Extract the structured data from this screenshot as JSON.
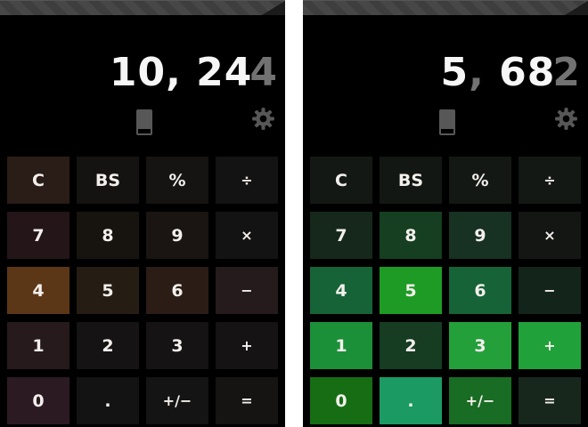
{
  "display_tones": {
    "bright": "#f6f6f6",
    "dim": "#727272"
  },
  "status_bar": {
    "base": "#474747",
    "stripe": "#3e3e3e",
    "corner": "#1b1b1b"
  },
  "icon_color": "#575757",
  "panels": [
    {
      "theme": "brown",
      "display": {
        "value_shown": "10,244",
        "segments": [
          {
            "text": "10, 24",
            "tone": "bright",
            "overlap": false
          },
          {
            "text": "4",
            "tone": "dim",
            "overlap": true
          }
        ]
      },
      "toolbar": {
        "icons": [
          "phone-display",
          "settings-gear"
        ]
      },
      "keys": [
        {
          "name": "clear",
          "label": "C",
          "bg": "#2a1c16",
          "op": false
        },
        {
          "name": "backspace",
          "label": "BS",
          "bg": "#151312",
          "op": false
        },
        {
          "name": "percent",
          "label": "%",
          "bg": "#151413",
          "op": false
        },
        {
          "name": "divide",
          "label": "÷",
          "bg": "#141313",
          "op": true
        },
        {
          "name": "7",
          "label": "7",
          "bg": "#241519",
          "op": false
        },
        {
          "name": "8",
          "label": "8",
          "bg": "#171410",
          "op": false
        },
        {
          "name": "9",
          "label": "9",
          "bg": "#1a1512",
          "op": false
        },
        {
          "name": "multiply",
          "label": "×",
          "bg": "#141313",
          "op": true
        },
        {
          "name": "4",
          "label": "4",
          "bg": "#5c3717",
          "op": false
        },
        {
          "name": "5",
          "label": "5",
          "bg": "#251c13",
          "op": false
        },
        {
          "name": "6",
          "label": "6",
          "bg": "#2b1d15",
          "op": false
        },
        {
          "name": "subtract",
          "label": "−",
          "bg": "#251a1c",
          "op": true
        },
        {
          "name": "1",
          "label": "1",
          "bg": "#261a1d",
          "op": false
        },
        {
          "name": "2",
          "label": "2",
          "bg": "#151313",
          "op": false
        },
        {
          "name": "3",
          "label": "3",
          "bg": "#161314",
          "op": false
        },
        {
          "name": "add",
          "label": "+",
          "bg": "#161314",
          "op": true
        },
        {
          "name": "0",
          "label": "0",
          "bg": "#2c1a23",
          "op": false
        },
        {
          "name": "decimal",
          "label": ".",
          "bg": "#141313",
          "op": false
        },
        {
          "name": "sign",
          "label": "+/−",
          "bg": "#151414",
          "op": true
        },
        {
          "name": "equals",
          "label": "=",
          "bg": "#161413",
          "op": true
        }
      ]
    },
    {
      "theme": "green",
      "display": {
        "value_shown": "5,682",
        "segments": [
          {
            "text": "5",
            "tone": "bright",
            "overlap": false
          },
          {
            "text": ",",
            "tone": "dim",
            "overlap": false
          },
          {
            "text": " 68",
            "tone": "bright",
            "overlap": false
          },
          {
            "text": "2",
            "tone": "dim",
            "overlap": true
          }
        ]
      },
      "toolbar": {
        "icons": [
          "phone-display",
          "settings-gear"
        ]
      },
      "keys": [
        {
          "name": "clear",
          "label": "C",
          "bg": "#141814",
          "op": false
        },
        {
          "name": "backspace",
          "label": "BS",
          "bg": "#131713",
          "op": false
        },
        {
          "name": "percent",
          "label": "%",
          "bg": "#141814",
          "op": false
        },
        {
          "name": "divide",
          "label": "÷",
          "bg": "#141814",
          "op": true
        },
        {
          "name": "7",
          "label": "7",
          "bg": "#15281b",
          "op": false
        },
        {
          "name": "8",
          "label": "8",
          "bg": "#153f20",
          "op": false
        },
        {
          "name": "9",
          "label": "9",
          "bg": "#173123",
          "op": false
        },
        {
          "name": "multiply",
          "label": "×",
          "bg": "#131613",
          "op": true
        },
        {
          "name": "4",
          "label": "4",
          "bg": "#156336",
          "op": false
        },
        {
          "name": "5",
          "label": "5",
          "bg": "#1e9b24",
          "op": false
        },
        {
          "name": "6",
          "label": "6",
          "bg": "#156336",
          "op": false
        },
        {
          "name": "subtract",
          "label": "−",
          "bg": "#13241a",
          "op": true
        },
        {
          "name": "1",
          "label": "1",
          "bg": "#1b9038",
          "op": false
        },
        {
          "name": "2",
          "label": "2",
          "bg": "#163c22",
          "op": false
        },
        {
          "name": "3",
          "label": "3",
          "bg": "#23a03a",
          "op": false
        },
        {
          "name": "add",
          "label": "+",
          "bg": "#21a139",
          "op": true
        },
        {
          "name": "0",
          "label": "0",
          "bg": "#176d14",
          "op": false
        },
        {
          "name": "decimal",
          "label": ".",
          "bg": "#1b9a63",
          "op": false
        },
        {
          "name": "sign",
          "label": "+/−",
          "bg": "#186c23",
          "op": true
        },
        {
          "name": "equals",
          "label": "=",
          "bg": "#18271c",
          "op": true
        }
      ]
    }
  ]
}
